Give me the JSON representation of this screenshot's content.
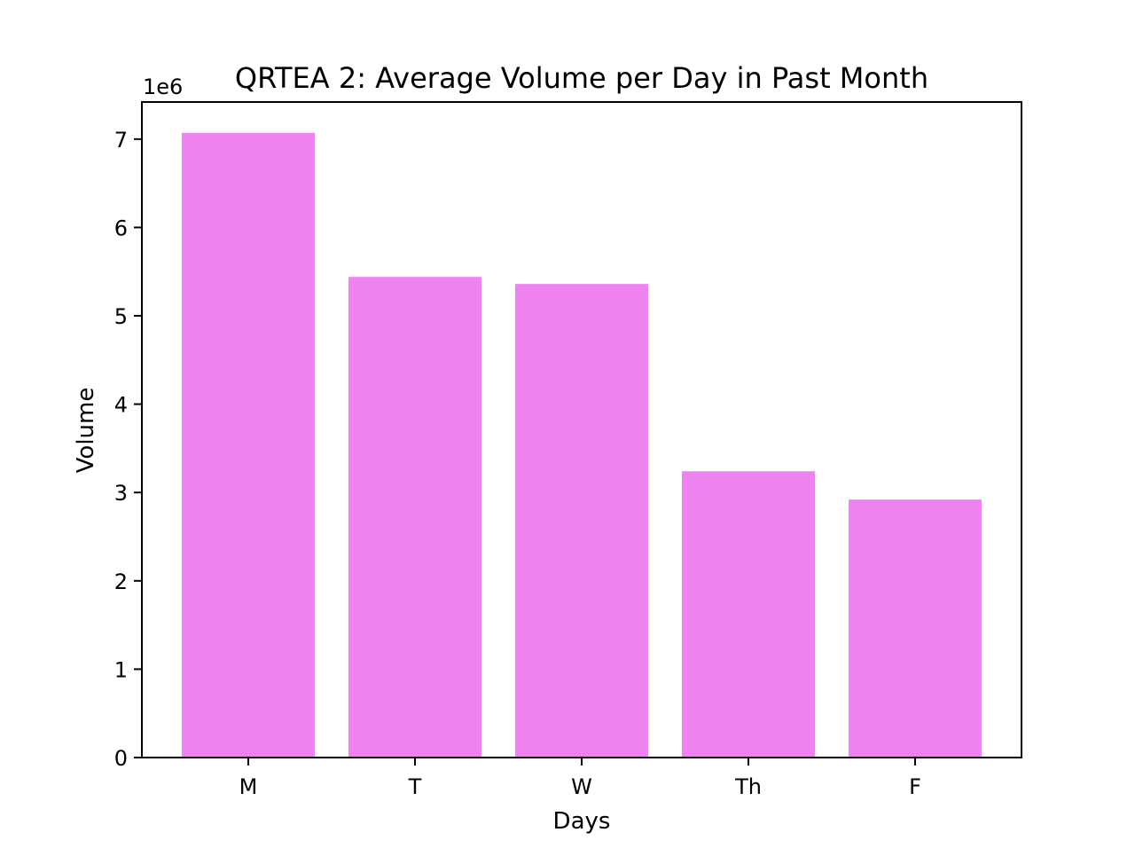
{
  "chart_data": {
    "type": "bar",
    "title": "QRTEA 2: Average Volume per Day in Past Month",
    "xlabel": "Days",
    "ylabel": "Volume",
    "y_offset_label": "1e6",
    "categories": [
      "M",
      "T",
      "W",
      "Th",
      "F"
    ],
    "values": [
      7070000,
      5440000,
      5360000,
      3240000,
      2920000
    ],
    "ylim": [
      0,
      7420000
    ],
    "y_ticks": [
      0,
      1000000,
      2000000,
      3000000,
      4000000,
      5000000,
      6000000,
      7000000
    ],
    "y_tick_labels": [
      "0",
      "1",
      "2",
      "3",
      "4",
      "5",
      "6",
      "7"
    ],
    "grid": false,
    "bar_color": "#ee82ee"
  }
}
